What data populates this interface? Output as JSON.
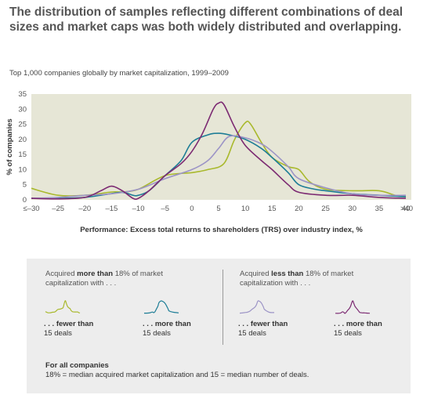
{
  "headline": "The distribution of samples reflecting different combinations of deal sizes and market caps was both widely distributed and overlapping.",
  "subtitle": "Top 1,000 companies globally by market capitalization, 1999–2009",
  "chart_data": {
    "type": "line",
    "xlabel": "Performance: Excess total returns to shareholders (TRS) over industry index, %",
    "ylabel": "% of companies",
    "x_tick_labels": [
      "≤–30",
      "–25",
      "–20",
      "–15",
      "–10",
      "–5",
      "0",
      "5",
      "10",
      "15",
      "20",
      "25",
      "30",
      "35",
      "40",
      ">40"
    ],
    "y_tick_labels": [
      "0",
      "5",
      "10",
      "15",
      "20",
      "25",
      "30",
      "35"
    ],
    "xlim": [
      -30,
      40
    ],
    "ylim": [
      0,
      35
    ],
    "grid": false,
    "background": "#e6e6d6",
    "series": [
      {
        "key": "more_fewer",
        "color": "#a9b92d",
        "x": [
          -30,
          -25,
          -20,
          -15,
          -13,
          -10,
          -5,
          0,
          3,
          6,
          8,
          10,
          11,
          13,
          15,
          18,
          20,
          22,
          25,
          30,
          35,
          38,
          40
        ],
        "values": [
          3.8,
          1.5,
          1.5,
          2.6,
          2.6,
          3.5,
          8,
          9,
          10,
          12,
          20,
          25.5,
          25,
          19,
          14,
          11,
          10,
          6,
          3.5,
          3,
          3,
          1.5,
          1
        ]
      },
      {
        "key": "more_more",
        "color": "#1d7d96",
        "x": [
          -30,
          -25,
          -20,
          -16,
          -13,
          -11,
          -10,
          -8,
          -5,
          -2,
          0,
          3,
          5,
          7,
          10,
          13,
          15,
          18,
          20,
          23,
          25,
          30,
          35,
          40
        ],
        "values": [
          0.5,
          0.5,
          0.8,
          1.8,
          2.5,
          1.5,
          1.5,
          3,
          8,
          13,
          19,
          21.5,
          22,
          21.5,
          20,
          17,
          14,
          9,
          5,
          3.5,
          3,
          2,
          1.5,
          1
        ]
      },
      {
        "key": "less_fewer",
        "color": "#9c94c6",
        "x": [
          -30,
          -25,
          -20,
          -15,
          -10,
          -5,
          0,
          3,
          5,
          7,
          10,
          13,
          15,
          18,
          20,
          25,
          30,
          35,
          40
        ],
        "values": [
          0.5,
          0.8,
          1.5,
          2,
          3.5,
          7,
          10,
          13,
          17,
          21,
          20.5,
          18.5,
          16,
          11,
          7,
          4,
          2,
          1.5,
          1.5
        ]
      },
      {
        "key": "less_more",
        "color": "#7c2a72",
        "x": [
          -30,
          -25,
          -20,
          -17,
          -15,
          -13,
          -11,
          -10,
          -8,
          -5,
          -2,
          0,
          2,
          4,
          5,
          6,
          8,
          10,
          13,
          15,
          18,
          20,
          25,
          30,
          35,
          40
        ],
        "values": [
          0.5,
          0.3,
          0.8,
          3,
          4.5,
          3,
          0.5,
          0.5,
          3,
          8,
          12,
          16,
          22,
          30,
          32,
          31.5,
          24,
          18,
          13,
          10,
          5,
          2.5,
          1.5,
          1.5,
          0.8,
          0.5
        ]
      }
    ]
  },
  "legend": {
    "left_heading_pre": "Acquired ",
    "left_heading_bold": "more than",
    "left_heading_post": " 18% of market capitalization with . . .",
    "right_heading_pre": "Acquired ",
    "right_heading_bold": "less than",
    "right_heading_post": " 18% of market capitalization with . . .",
    "items": [
      {
        "bold": ". . . fewer than",
        "line2": "15 deals",
        "color": "#a9b92d"
      },
      {
        "bold": ". . . more than",
        "line2": "15 deals",
        "color": "#1d7d96"
      },
      {
        "bold": ". . . fewer than",
        "line2": "15 deals",
        "color": "#9c94c6"
      },
      {
        "bold": ". . . more than",
        "line2": "15 deals",
        "color": "#7c2a72"
      }
    ],
    "note_heading": "For all companies",
    "note_text": "18% = median acquired market capitalization and 15 = median number of deals."
  }
}
